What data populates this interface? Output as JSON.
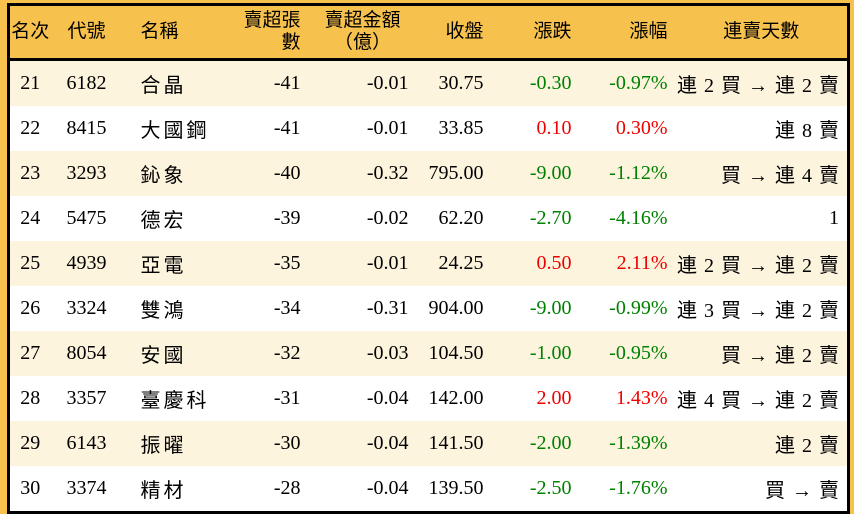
{
  "colors": {
    "frame_orange": "#f7c14e",
    "row_cream": "#fdf4de",
    "row_white": "#ffffff",
    "up_red": "#ee0000",
    "down_green": "#008000",
    "border_black": "#000000"
  },
  "chart_data": {
    "type": "table",
    "columns": [
      {
        "key": "rank",
        "label": "名次"
      },
      {
        "key": "code",
        "label": "代號"
      },
      {
        "key": "name",
        "label": "名稱"
      },
      {
        "key": "sell_volume",
        "label": "賣超張數"
      },
      {
        "key": "sell_amount",
        "label": "賣超金額",
        "label2": "（億）"
      },
      {
        "key": "close",
        "label": "收盤"
      },
      {
        "key": "change",
        "label": "漲跌"
      },
      {
        "key": "change_pct",
        "label": "漲幅"
      },
      {
        "key": "streak",
        "label": "連賣天數"
      }
    ],
    "rows": [
      {
        "rank": "21",
        "code": "6182",
        "name": "合晶",
        "sell_volume": "-41",
        "sell_amount": "-0.01",
        "close": "30.75",
        "change": "-0.30",
        "change_pct": "-0.97%",
        "trend": "down",
        "streak": "連 2 買 → 連 2 賣"
      },
      {
        "rank": "22",
        "code": "8415",
        "name": "大國鋼",
        "sell_volume": "-41",
        "sell_amount": "-0.01",
        "close": "33.85",
        "change": "0.10",
        "change_pct": "0.30%",
        "trend": "up",
        "streak": "連 8 賣"
      },
      {
        "rank": "23",
        "code": "3293",
        "name": "鈊象",
        "sell_volume": "-40",
        "sell_amount": "-0.32",
        "close": "795.00",
        "change": "-9.00",
        "change_pct": "-1.12%",
        "trend": "down",
        "streak": "買 → 連 4 賣"
      },
      {
        "rank": "24",
        "code": "5475",
        "name": "德宏",
        "sell_volume": "-39",
        "sell_amount": "-0.02",
        "close": "62.20",
        "change": "-2.70",
        "change_pct": "-4.16%",
        "trend": "down",
        "streak": "1"
      },
      {
        "rank": "25",
        "code": "4939",
        "name": "亞電",
        "sell_volume": "-35",
        "sell_amount": "-0.01",
        "close": "24.25",
        "change": "0.50",
        "change_pct": "2.11%",
        "trend": "up",
        "streak": "連 2 買 → 連 2 賣"
      },
      {
        "rank": "26",
        "code": "3324",
        "name": "雙鴻",
        "sell_volume": "-34",
        "sell_amount": "-0.31",
        "close": "904.00",
        "change": "-9.00",
        "change_pct": "-0.99%",
        "trend": "down",
        "streak": "連 3 買 → 連 2 賣"
      },
      {
        "rank": "27",
        "code": "8054",
        "name": "安國",
        "sell_volume": "-32",
        "sell_amount": "-0.03",
        "close": "104.50",
        "change": "-1.00",
        "change_pct": "-0.95%",
        "trend": "down",
        "streak": "買 → 連 2 賣"
      },
      {
        "rank": "28",
        "code": "3357",
        "name": "臺慶科",
        "sell_volume": "-31",
        "sell_amount": "-0.04",
        "close": "142.00",
        "change": "2.00",
        "change_pct": "1.43%",
        "trend": "up",
        "streak": "連 4 買 → 連 2 賣"
      },
      {
        "rank": "29",
        "code": "6143",
        "name": "振曜",
        "sell_volume": "-30",
        "sell_amount": "-0.04",
        "close": "141.50",
        "change": "-2.00",
        "change_pct": "-1.39%",
        "trend": "down",
        "streak": "連 2 賣"
      },
      {
        "rank": "30",
        "code": "3374",
        "name": "精材",
        "sell_volume": "-28",
        "sell_amount": "-0.04",
        "close": "139.50",
        "change": "-2.50",
        "change_pct": "-1.76%",
        "trend": "down",
        "streak": "買 → 賣"
      }
    ]
  }
}
